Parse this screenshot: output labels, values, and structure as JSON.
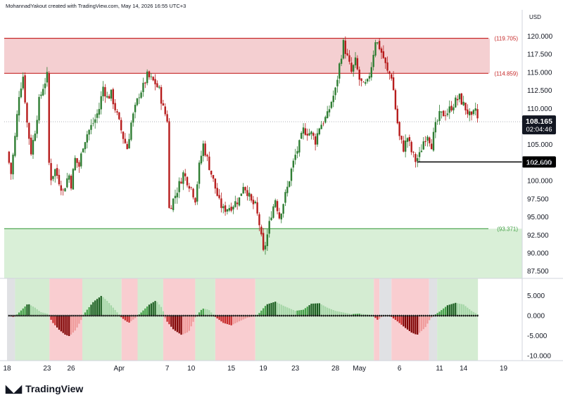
{
  "header": {
    "caption": "MohannadYakout created with TradingView.com, May 14, 2026 16:55 UTC+3"
  },
  "footer": {
    "brand": "TradingView"
  },
  "colors": {
    "up": "#2e7d32",
    "down": "#b71c1c",
    "resistance_line": "#c62828",
    "resistance_fill": "#f4cfd1",
    "support_line": "#43a047",
    "support_fill": "#d9efd7",
    "hist_pos": [
      "#1b5e20",
      "#43a047",
      "#a5d6a7"
    ],
    "hist_neg": [
      "#7f0000",
      "#c62828",
      "#ef9a9a"
    ]
  },
  "chart_data": [
    {
      "type": "candlestick",
      "currency": "USD",
      "ylim": [
        86.5,
        121.5
      ],
      "yticks": [
        "120.000",
        "117.500",
        "115.000",
        "112.500",
        "110.000",
        "107.500",
        "105.000",
        "102.500",
        "100.000",
        "97.500",
        "95.000",
        "92.500",
        "90.000",
        "87.500"
      ],
      "resistance_zone": {
        "upper": 119.705,
        "lower": 114.859,
        "upper_label": "(119.705)",
        "lower_label": "(114.859)"
      },
      "support_zone": {
        "upper": 93.371,
        "label": "(93.371)"
      },
      "last_price": {
        "value": 108.165,
        "label": "108.165",
        "countdown": "02:04:46"
      },
      "marked_level": {
        "value": 102.6,
        "label": "102.600"
      },
      "x_labels": [
        {
          "label": "18",
          "day": 0
        },
        {
          "label": "23",
          "day": 5
        },
        {
          "label": "26",
          "day": 8
        },
        {
          "label": "Apr",
          "day": 14
        },
        {
          "label": "7",
          "day": 20
        },
        {
          "label": "10",
          "day": 23
        },
        {
          "label": "15",
          "day": 28
        },
        {
          "label": "19",
          "day": 32
        },
        {
          "label": "23",
          "day": 36
        },
        {
          "label": "28",
          "day": 41
        },
        {
          "label": "May",
          "day": 44
        },
        {
          "label": "6",
          "day": 49
        },
        {
          "label": "11",
          "day": 54
        },
        {
          "label": "14",
          "day": 57
        },
        {
          "label": "19",
          "day": 62
        }
      ],
      "close_path": [
        [
          0,
          104
        ],
        [
          0.5,
          101
        ],
        [
          1,
          106
        ],
        [
          1.5,
          112
        ],
        [
          2,
          114.5
        ],
        [
          2.5,
          108
        ],
        [
          3,
          104
        ],
        [
          3.5,
          107
        ],
        [
          4,
          111
        ],
        [
          4.5,
          113
        ],
        [
          5,
          114.5
        ],
        [
          5.3,
          100
        ],
        [
          6,
          101.5
        ],
        [
          7,
          98.5
        ],
        [
          7.7,
          101
        ],
        [
          8,
          99.5
        ],
        [
          8.5,
          103
        ],
        [
          9,
          102
        ],
        [
          9.5,
          105
        ],
        [
          10,
          106.5
        ],
        [
          11,
          108.5
        ],
        [
          11.5,
          110
        ],
        [
          12,
          113
        ],
        [
          12.5,
          111.5
        ],
        [
          13,
          112
        ],
        [
          13.5,
          110
        ],
        [
          14,
          108
        ],
        [
          14.5,
          106
        ],
        [
          15,
          104.5
        ],
        [
          15.5,
          108
        ],
        [
          16,
          110
        ],
        [
          16.5,
          112
        ],
        [
          17,
          113
        ],
        [
          17.5,
          114.5
        ],
        [
          18,
          114
        ],
        [
          18.5,
          113.5
        ],
        [
          19,
          112.5
        ],
        [
          19.5,
          110
        ],
        [
          20,
          108.5
        ],
        [
          20.2,
          96
        ],
        [
          21,
          98
        ],
        [
          21.5,
          99.5
        ],
        [
          22,
          101
        ],
        [
          22.5,
          100
        ],
        [
          23,
          99
        ],
        [
          23.5,
          97.5
        ],
        [
          24,
          102
        ],
        [
          24.5,
          105
        ],
        [
          25,
          103
        ],
        [
          25.5,
          101
        ],
        [
          26,
          99
        ],
        [
          26.5,
          97
        ],
        [
          27,
          96
        ],
        [
          28,
          96.5
        ],
        [
          29,
          97.5
        ],
        [
          29.5,
          99.5
        ],
        [
          30,
          98.5
        ],
        [
          30.5,
          97
        ],
        [
          31,
          96.5
        ],
        [
          31.5,
          94
        ],
        [
          32,
          90
        ],
        [
          32.5,
          92.5
        ],
        [
          33,
          95.5
        ],
        [
          33.5,
          97.5
        ],
        [
          34,
          95
        ],
        [
          34.5,
          97
        ],
        [
          35,
          99
        ],
        [
          35.5,
          101.5
        ],
        [
          36,
          103.5
        ],
        [
          36.5,
          105
        ],
        [
          37,
          107
        ],
        [
          38,
          106.5
        ],
        [
          38.5,
          105.5
        ],
        [
          39,
          107.5
        ],
        [
          40,
          109
        ],
        [
          40.5,
          111
        ],
        [
          41,
          112.5
        ],
        [
          41.5,
          116
        ],
        [
          42,
          119
        ],
        [
          42.5,
          117
        ],
        [
          43,
          115
        ],
        [
          43.5,
          116.5
        ],
        [
          44,
          114
        ],
        [
          44.5,
          113
        ],
        [
          45,
          113.5
        ],
        [
          45.5,
          116
        ],
        [
          46,
          119.5
        ],
        [
          46.5,
          118.5
        ],
        [
          47,
          117
        ],
        [
          47.5,
          115
        ],
        [
          48,
          114.5
        ],
        [
          48.2,
          113
        ],
        [
          48.5,
          110
        ],
        [
          49,
          106
        ],
        [
          49.5,
          104.5
        ],
        [
          50,
          106
        ],
        [
          50.5,
          104
        ],
        [
          51,
          102.8
        ],
        [
          51.5,
          103.5
        ],
        [
          52,
          105.5
        ],
        [
          52.5,
          106.5
        ],
        [
          53,
          105
        ],
        [
          53.5,
          107.5
        ],
        [
          54,
          109
        ],
        [
          55,
          109.5
        ],
        [
          56,
          111
        ],
        [
          56.5,
          111.5
        ],
        [
          57,
          110.5
        ],
        [
          57.5,
          109.5
        ],
        [
          58,
          108.5
        ],
        [
          58.5,
          110
        ],
        [
          58.8,
          108.165
        ]
      ]
    },
    {
      "type": "histogram",
      "ylim": [
        -11.2,
        9.3
      ],
      "yticks": [
        "5.000",
        "0.000",
        "-5.000",
        "-10.000"
      ],
      "background_bands": [
        {
          "from": 0,
          "to": 1,
          "state": "neutral"
        },
        {
          "from": 1,
          "to": 5.3,
          "state": "bull"
        },
        {
          "from": 5.3,
          "to": 9.4,
          "state": "bear"
        },
        {
          "from": 9.4,
          "to": 14.3,
          "state": "bull"
        },
        {
          "from": 14.3,
          "to": 16.3,
          "state": "bear"
        },
        {
          "from": 16.3,
          "to": 19.5,
          "state": "bull"
        },
        {
          "from": 19.5,
          "to": 23.5,
          "state": "bear"
        },
        {
          "from": 23.5,
          "to": 26,
          "state": "bull"
        },
        {
          "from": 26,
          "to": 31,
          "state": "bear"
        },
        {
          "from": 31,
          "to": 45.8,
          "state": "bull"
        },
        {
          "from": 45.8,
          "to": 46.5,
          "state": "bear"
        },
        {
          "from": 46.5,
          "to": 48,
          "state": "neutral"
        },
        {
          "from": 48,
          "to": 52.7,
          "state": "bear"
        },
        {
          "from": 52.7,
          "to": 53.7,
          "state": "neutral"
        },
        {
          "from": 53.7,
          "to": 58.8,
          "state": "bull"
        }
      ],
      "wave_points": [
        [
          0,
          0.2
        ],
        [
          0.9,
          -0.4
        ],
        [
          1.5,
          0.8
        ],
        [
          2.6,
          3
        ],
        [
          3.5,
          2
        ],
        [
          4.2,
          0.9
        ],
        [
          5.2,
          0.4
        ],
        [
          5.6,
          -1.5
        ],
        [
          6.5,
          -3.5
        ],
        [
          7.3,
          -4.8
        ],
        [
          7.8,
          -5.1
        ],
        [
          8.6,
          -3.5
        ],
        [
          9.4,
          -0.5
        ],
        [
          9.8,
          1
        ],
        [
          10.8,
          3.5
        ],
        [
          11.8,
          5
        ],
        [
          12.6,
          3.5
        ],
        [
          13.6,
          1.2
        ],
        [
          14.3,
          -0.5
        ],
        [
          15.2,
          -1.8
        ],
        [
          16,
          -0.6
        ],
        [
          16.6,
          0.5
        ],
        [
          17.7,
          2.7
        ],
        [
          18.6,
          3.8
        ],
        [
          19.4,
          1.8
        ],
        [
          19.8,
          -1
        ],
        [
          20.8,
          -3.5
        ],
        [
          21.8,
          -4.8
        ],
        [
          22.7,
          -4
        ],
        [
          23.5,
          -0.4
        ],
        [
          24.4,
          1.8
        ],
        [
          25.2,
          1.5
        ],
        [
          26,
          -0.3
        ],
        [
          27,
          -1.8
        ],
        [
          28,
          -2.4
        ],
        [
          29,
          -1.4
        ],
        [
          30,
          -0.5
        ],
        [
          30.5,
          -0.3
        ],
        [
          31.3,
          0.2
        ],
        [
          32.4,
          2.8
        ],
        [
          33.5,
          3.5
        ],
        [
          34.6,
          2.4
        ],
        [
          36,
          1.2
        ],
        [
          37,
          1.5
        ],
        [
          38,
          3
        ],
        [
          39,
          3.1
        ],
        [
          40,
          2
        ],
        [
          41,
          1.2
        ],
        [
          42,
          0.8
        ],
        [
          43,
          0.4
        ],
        [
          44,
          0.5
        ],
        [
          45,
          0.3
        ],
        [
          45.8,
          -0.2
        ],
        [
          46.3,
          -1.1
        ],
        [
          47.1,
          0.2
        ],
        [
          48,
          -0.3
        ],
        [
          48.8,
          -1.5
        ],
        [
          49.7,
          -3
        ],
        [
          50.5,
          -4.2
        ],
        [
          51.2,
          -4.8
        ],
        [
          52.2,
          -3
        ],
        [
          52.9,
          -0.6
        ],
        [
          53.4,
          0.2
        ],
        [
          54,
          1
        ],
        [
          55,
          2.6
        ],
        [
          56,
          3.2
        ],
        [
          57,
          2.8
        ],
        [
          58,
          1.2
        ],
        [
          58.8,
          0.3
        ]
      ]
    }
  ]
}
